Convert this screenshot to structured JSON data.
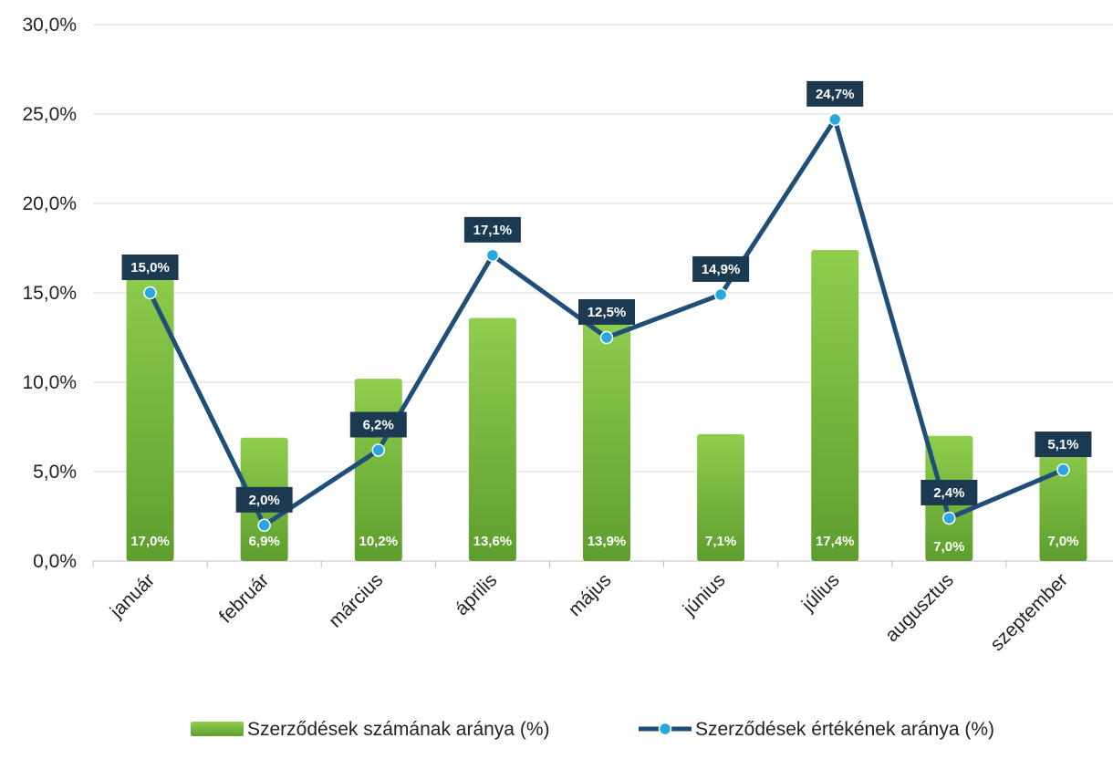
{
  "chart_data": {
    "type": "bar",
    "categories": [
      "január",
      "február",
      "március",
      "április",
      "május",
      "június",
      "július",
      "augusztus",
      "szeptember"
    ],
    "series": [
      {
        "name": "Szerződések számának aránya (%)",
        "type": "bar",
        "values": [
          17.0,
          6.9,
          10.2,
          13.6,
          13.9,
          7.1,
          17.4,
          7.0,
          7.0
        ],
        "labels": [
          "17,0%",
          "6,9%",
          "10,2%",
          "13,6%",
          "13,9%",
          "7,1%",
          "17,4%",
          "7,0%",
          "7,0%"
        ],
        "color": "#7DC242"
      },
      {
        "name": "Szerződések értékének aránya (%)",
        "type": "line",
        "values": [
          15.0,
          2.0,
          6.2,
          17.1,
          12.5,
          14.9,
          24.7,
          2.4,
          5.1
        ],
        "labels": [
          "15,0%",
          "2,0%",
          "6,2%",
          "17,1%",
          "12,5%",
          "14,9%",
          "24,7%",
          "2,4%",
          "5,1%"
        ],
        "color": "#1F4E79",
        "marker_color": "#29A8E0"
      }
    ],
    "y_ticks": [
      "0,0%",
      "5,0%",
      "10,0%",
      "15,0%",
      "20,0%",
      "25,0%",
      "30,0%"
    ],
    "ylim": [
      0,
      30
    ],
    "grid": true,
    "legend": "bottom"
  }
}
